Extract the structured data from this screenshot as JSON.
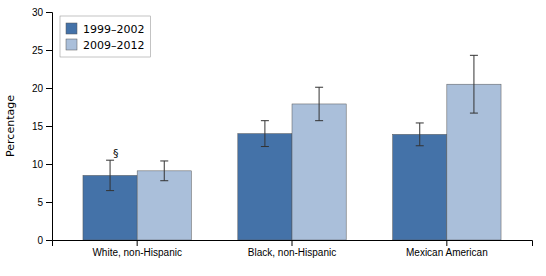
{
  "chart_data": {
    "type": "bar",
    "categories": [
      "White, non-Hispanic",
      "Black, non-Hispanic",
      "Mexican American"
    ],
    "series": [
      {
        "name": "1999–2002",
        "color": "#4472a8",
        "values": [
          8.5,
          14.0,
          13.9
        ],
        "yerr_lower": [
          2.0,
          1.7,
          1.5
        ],
        "yerr_upper": [
          2.0,
          1.7,
          1.5
        ]
      },
      {
        "name": "2009–2012",
        "color": "#aabfda",
        "values": [
          9.1,
          17.9,
          20.5
        ],
        "yerr_lower": [
          1.3,
          2.2,
          3.8
        ],
        "yerr_upper": [
          1.3,
          2.2,
          3.8
        ]
      }
    ],
    "ylabel": "Percentage",
    "ylim": [
      0,
      30
    ],
    "yticks": [
      0,
      5,
      10,
      15,
      20,
      25,
      30
    ],
    "annotation": "§",
    "legend": "upper left",
    "grid": false
  }
}
